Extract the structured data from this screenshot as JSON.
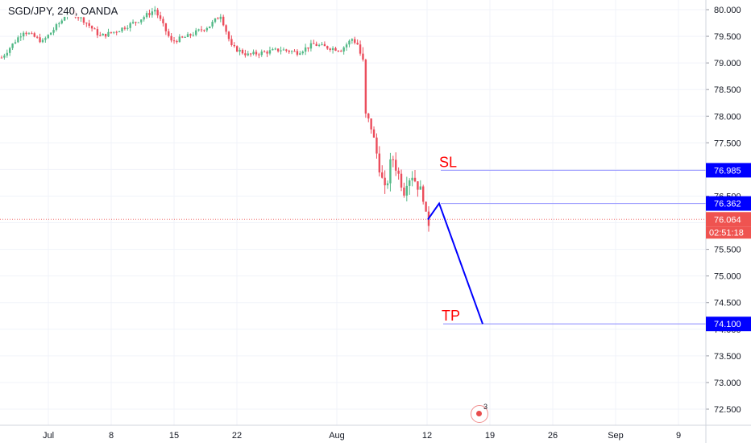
{
  "header": {
    "symbol": "SGD/JPY, 240, OANDA"
  },
  "reminder": {
    "count": "3"
  },
  "colors": {
    "up": "#53b987",
    "down": "#eb4d5c",
    "grid": "#f0f3fa",
    "axis_text": "#131722",
    "drawing_line": "#0000ff",
    "level_line": "#8c8cff",
    "label_text": "#ff0000",
    "last_price": "#ef5350"
  },
  "chart_data": {
    "type": "candlestick",
    "instrument": "SGD/JPY",
    "interval": "240",
    "source": "OANDA",
    "y_axis": {
      "ticks": [
        "80.000",
        "79.500",
        "79.000",
        "78.500",
        "78.000",
        "77.500",
        "77.000",
        "76.500",
        "76.000",
        "75.500",
        "75.000",
        "74.500",
        "74.000",
        "73.500",
        "73.000",
        "72.500"
      ],
      "ylim": [
        72.35,
        80.15
      ]
    },
    "x_axis": {
      "ticks": [
        "Jul",
        "8",
        "15",
        "22",
        "Aug",
        "12",
        "19",
        "26",
        "Sep",
        "9"
      ]
    },
    "price_path": [
      [
        0,
        79.1
      ],
      [
        8,
        79.6
      ],
      [
        15,
        79.4
      ],
      [
        22,
        79.8
      ],
      [
        24,
        80.0
      ],
      [
        30,
        79.8
      ],
      [
        36,
        79.5
      ],
      [
        42,
        79.6
      ],
      [
        50,
        79.8
      ],
      [
        56,
        80.0
      ],
      [
        62,
        79.4
      ],
      [
        68,
        79.5
      ],
      [
        76,
        79.7
      ],
      [
        80,
        79.9
      ],
      [
        84,
        79.3
      ],
      [
        90,
        79.15
      ],
      [
        96,
        79.2
      ],
      [
        102,
        79.25
      ],
      [
        108,
        79.2
      ],
      [
        114,
        79.35
      ],
      [
        118,
        79.3
      ],
      [
        124,
        79.25
      ],
      [
        128,
        79.45
      ],
      [
        130,
        79.35
      ],
      [
        132,
        79.0
      ],
      [
        133,
        78.0
      ],
      [
        135,
        77.8
      ],
      [
        137,
        77.3
      ],
      [
        139,
        76.8
      ],
      [
        140,
        76.6
      ],
      [
        141,
        76.8
      ],
      [
        142,
        77.1
      ],
      [
        143,
        77.2
      ],
      [
        145,
        76.9
      ],
      [
        147,
        76.6
      ],
      [
        148,
        76.8
      ],
      [
        150,
        76.9
      ],
      [
        152,
        76.7
      ],
      [
        154,
        76.5
      ],
      [
        155,
        76.1
      ],
      [
        156,
        76.0
      ]
    ],
    "levels": [
      {
        "label": "SL",
        "price": 76.985,
        "price_label": "76.985"
      },
      {
        "label": "",
        "price": 76.362,
        "price_label": "76.362"
      },
      {
        "label": "TP",
        "price": 74.1,
        "price_label": "74.100"
      }
    ],
    "last_price": {
      "price": 76.064,
      "price_label": "76.064",
      "countdown": "02:51:18"
    },
    "projection_path": [
      {
        "x": "Aug 12",
        "price": 76.06
      },
      {
        "x": "Aug 13",
        "price": 76.362
      },
      {
        "x": "Aug 18",
        "price": 74.1
      }
    ]
  }
}
